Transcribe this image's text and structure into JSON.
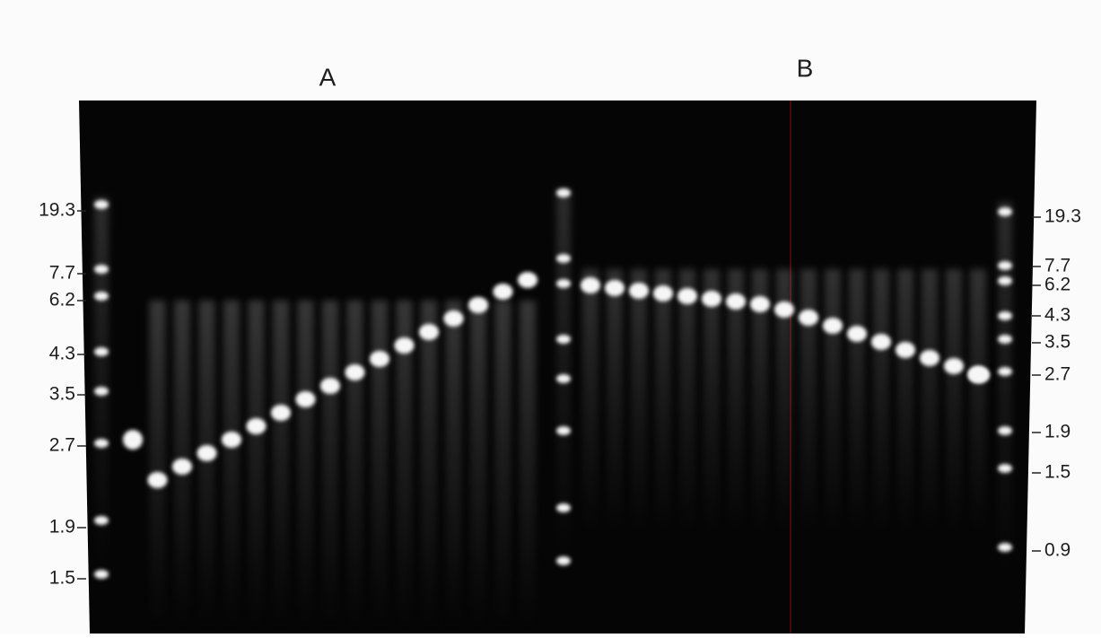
{
  "panels": [
    "A",
    "B"
  ],
  "left_markers": [
    "19.3",
    "7.7",
    "6.2",
    "4.3",
    "3.5",
    "2.7",
    "1.9",
    "1.5"
  ],
  "right_markers": [
    "19.3",
    "7.7",
    "6.2",
    "4.3",
    "3.5",
    "2.7",
    "1.9",
    "1.5",
    "0.9"
  ]
}
